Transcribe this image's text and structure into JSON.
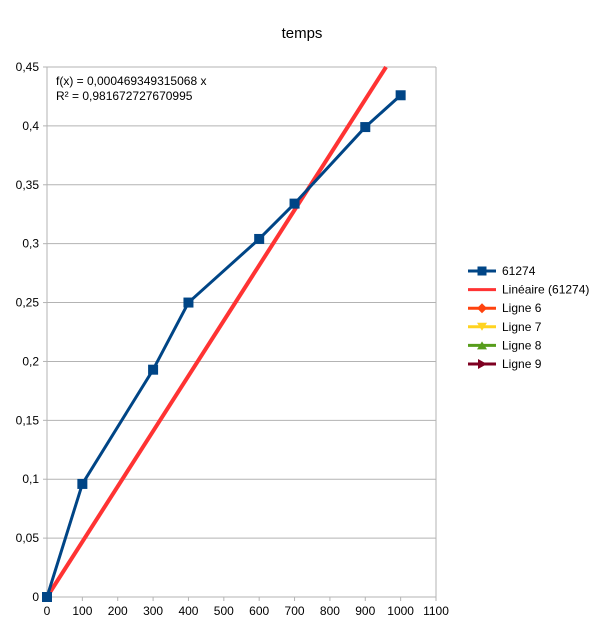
{
  "chart_data": {
    "type": "line",
    "title": "temps",
    "xlabel": "",
    "ylabel": "",
    "xlim": [
      0,
      1100
    ],
    "ylim": [
      0,
      0.45
    ],
    "x_ticks": [
      0,
      100,
      200,
      300,
      400,
      500,
      600,
      700,
      800,
      900,
      1000,
      1100
    ],
    "y_ticks": [
      0,
      0.05,
      0.1,
      0.15,
      0.2,
      0.25,
      0.3,
      0.35,
      0.4,
      0.45
    ],
    "x_tick_labels": [
      "0",
      "100",
      "200",
      "300",
      "400",
      "500",
      "600",
      "700",
      "800",
      "900",
      "1000",
      "1100"
    ],
    "y_tick_labels": [
      "0",
      "0,05",
      "0,1",
      "0,15",
      "0,2",
      "0,25",
      "0,3",
      "0,35",
      "0,4",
      "0,45"
    ],
    "grid": "horizontal",
    "legend_position": "right",
    "series": [
      {
        "name": "61274",
        "color": "#004586",
        "marker": "square",
        "x": [
          0,
          100,
          300,
          400,
          600,
          700,
          900,
          1000
        ],
        "y": [
          0,
          0.096,
          0.193,
          0.25,
          0.304,
          0.334,
          0.399,
          0.426
        ]
      }
    ],
    "trendline": {
      "name": "Linéaire (61274)",
      "color": "#ff3333",
      "type": "linear",
      "slope": 0.000469349315068,
      "equation": "f(x) = 0,000469349315068 x",
      "r_squared": "R² = 0,981672727670995"
    },
    "legend": [
      {
        "name": "61274",
        "color": "#004586",
        "marker": "square"
      },
      {
        "name": "Linéaire (61274)",
        "color": "#ff3333",
        "marker": "none"
      },
      {
        "name": "Ligne 6",
        "color": "#ff420e",
        "marker": "diamond"
      },
      {
        "name": "Ligne 7",
        "color": "#ffd320",
        "marker": "triangle-down"
      },
      {
        "name": "Ligne 8",
        "color": "#579d1c",
        "marker": "triangle-up"
      },
      {
        "name": "Ligne 9",
        "color": "#7e0021",
        "marker": "arrow-right"
      }
    ]
  }
}
